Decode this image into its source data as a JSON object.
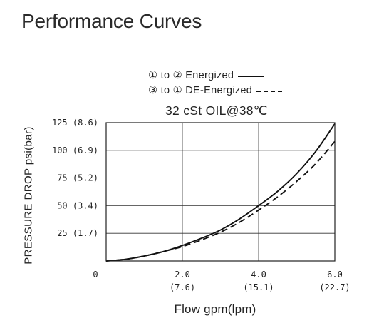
{
  "page": {
    "title": "Performance Curves"
  },
  "chart_data": {
    "type": "line",
    "legend": [
      {
        "text": "① to ② Energized",
        "style": "solid"
      },
      {
        "text": "③ to ① DE-Energized",
        "style": "dashed"
      }
    ],
    "subtitle": "32 cSt OIL@38℃",
    "xlabel": "Flow gpm(lpm)",
    "ylabel": "PRESSURE DROP psi(bar)",
    "xlim": [
      0,
      6.0
    ],
    "ylim": [
      0,
      125
    ],
    "grid": true,
    "x_ticks": [
      {
        "value": 0,
        "label": "0",
        "sub": ""
      },
      {
        "value": 2.0,
        "label": "2.0",
        "sub": "(7.6)"
      },
      {
        "value": 4.0,
        "label": "4.0",
        "sub": "(15.1)"
      },
      {
        "value": 6.0,
        "label": "6.0",
        "sub": "(22.7)"
      }
    ],
    "y_ticks": [
      {
        "value": 25,
        "label": "25 (1.7)"
      },
      {
        "value": 50,
        "label": "50 (3.4)"
      },
      {
        "value": 75,
        "label": "75 (5.2)"
      },
      {
        "value": 100,
        "label": "100 (6.9)"
      },
      {
        "value": 125,
        "label": "125 (8.6)"
      }
    ],
    "series": [
      {
        "name": "① to ② Energized",
        "style": "solid",
        "x": [
          0,
          0.5,
          1.0,
          1.5,
          2.0,
          2.5,
          3.0,
          3.5,
          4.0,
          4.5,
          5.0,
          5.5,
          6.0
        ],
        "y": [
          0,
          1.5,
          4.5,
          8.5,
          14,
          20.5,
          28,
          38,
          50,
          63,
          79,
          99,
          124
        ]
      },
      {
        "name": "③ to ① DE-Energized",
        "style": "dashed",
        "x": [
          0,
          0.5,
          1.0,
          1.5,
          2.0,
          2.5,
          3.0,
          3.5,
          4.0,
          4.5,
          5.0,
          5.5,
          6.0
        ],
        "y": [
          0,
          1.5,
          4.5,
          8.5,
          13,
          19,
          26,
          35,
          46,
          58,
          72,
          88,
          108
        ]
      }
    ]
  }
}
